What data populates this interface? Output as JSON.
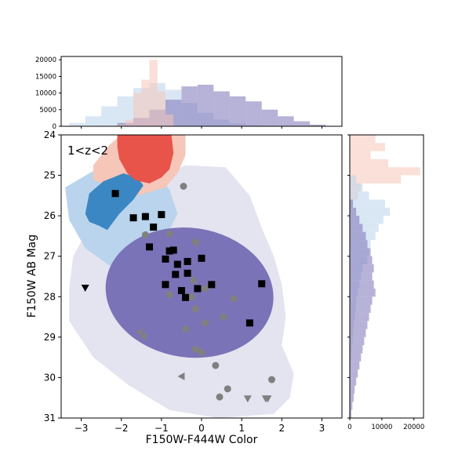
{
  "chart_data": {
    "type": "scatter",
    "panel_label": "1<z<2",
    "xlabel": "F150W-F444W Color",
    "ylabel": "F150W AB Mag",
    "xlim": [
      -3.5,
      3.5
    ],
    "ylim": [
      31,
      24
    ],
    "xticks": [
      -3,
      -2,
      -1,
      0,
      1,
      2,
      3
    ],
    "yticks": [
      24,
      25,
      26,
      27,
      28,
      29,
      30,
      31
    ],
    "top_hist_yticks": [
      0,
      5000,
      10000,
      15000,
      20000
    ],
    "top_hist_ylim": [
      0,
      21000
    ],
    "right_hist_xticks": [
      0,
      10000,
      20000
    ],
    "right_hist_xlim": [
      0,
      23000
    ],
    "colors": {
      "red": "#e8534a",
      "pink": "#f6c6b8",
      "blue": "#3b87c3",
      "lightblue": "#b9d4ec",
      "purple": "#7b73b7",
      "lavender": "#e4e3f0",
      "grey": "#808080",
      "black": "#000000"
    },
    "black_squares": [
      {
        "x": -2.15,
        "y": 25.45
      },
      {
        "x": -1.7,
        "y": 26.05
      },
      {
        "x": -1.4,
        "y": 26.02
      },
      {
        "x": -1.0,
        "y": 25.97
      },
      {
        "x": -1.2,
        "y": 26.28
      },
      {
        "x": -1.3,
        "y": 26.77
      },
      {
        "x": -0.8,
        "y": 26.87
      },
      {
        "x": -0.7,
        "y": 26.85
      },
      {
        "x": -0.9,
        "y": 27.07
      },
      {
        "x": -0.6,
        "y": 27.2
      },
      {
        "x": -0.65,
        "y": 27.45
      },
      {
        "x": -0.35,
        "y": 27.13
      },
      {
        "x": 0.0,
        "y": 27.05
      },
      {
        "x": -0.35,
        "y": 27.42
      },
      {
        "x": -0.9,
        "y": 27.7
      },
      {
        "x": -0.5,
        "y": 27.85
      },
      {
        "x": -0.4,
        "y": 28.02
      },
      {
        "x": -0.1,
        "y": 27.8
      },
      {
        "x": 0.25,
        "y": 27.7
      },
      {
        "x": 1.5,
        "y": 27.68
      },
      {
        "x": 1.2,
        "y": 28.65
      }
    ],
    "grey_circles": [
      {
        "x": -0.45,
        "y": 25.27
      },
      {
        "x": -1.4,
        "y": 26.47
      },
      {
        "x": -0.8,
        "y": 26.45
      },
      {
        "x": -0.15,
        "y": 26.65
      },
      {
        "x": -0.2,
        "y": 27.6
      },
      {
        "x": 0.1,
        "y": 27.8
      },
      {
        "x": -0.8,
        "y": 27.95
      },
      {
        "x": -0.25,
        "y": 28.0
      },
      {
        "x": -0.15,
        "y": 28.3
      },
      {
        "x": 0.8,
        "y": 28.05
      },
      {
        "x": -0.4,
        "y": 28.8
      },
      {
        "x": 0.55,
        "y": 28.5
      },
      {
        "x": 0.1,
        "y": 28.65
      },
      {
        "x": -0.15,
        "y": 29.3
      },
      {
        "x": 0.0,
        "y": 29.37
      },
      {
        "x": 0.35,
        "y": 29.7
      },
      {
        "x": 1.75,
        "y": 30.05
      },
      {
        "x": 0.65,
        "y": 30.28
      },
      {
        "x": 0.45,
        "y": 30.48
      }
    ],
    "upper_limit_triangles": [
      {
        "x": -2.9,
        "y": 27.78,
        "color": "black"
      },
      {
        "x": 1.15,
        "y": 30.52,
        "color": "grey"
      },
      {
        "x": 1.6,
        "y": 30.52,
        "color": "grey"
      },
      {
        "x": 1.65,
        "y": 30.52,
        "color": "grey"
      }
    ],
    "left_triangles": [
      {
        "x": -1.55,
        "y": 28.88
      },
      {
        "x": -1.45,
        "y": 28.98
      },
      {
        "x": -0.5,
        "y": 29.97
      }
    ],
    "contours": [
      {
        "name": "",
        "color": "lavender",
        "polygon": [
          [
            -3.2,
            27.0
          ],
          [
            -2.7,
            26.1
          ],
          [
            -1.6,
            25.3
          ],
          [
            -0.4,
            24.75
          ],
          [
            0.6,
            24.8
          ],
          [
            1.2,
            25.5
          ],
          [
            1.5,
            26.3
          ],
          [
            1.8,
            27.0
          ],
          [
            2.0,
            27.7
          ],
          [
            2.1,
            28.5
          ],
          [
            2.0,
            29.2
          ],
          [
            2.3,
            29.9
          ],
          [
            2.2,
            30.5
          ],
          [
            1.8,
            30.9
          ],
          [
            0.4,
            31.0
          ],
          [
            -0.8,
            30.8
          ],
          [
            -1.8,
            30.2
          ],
          [
            -2.7,
            29.5
          ],
          [
            -3.3,
            28.6
          ],
          [
            -3.3,
            27.8
          ]
        ]
      },
      {
        "name": "",
        "color": "lightblue",
        "polygon": [
          [
            -3.4,
            25.3
          ],
          [
            -2.8,
            24.95
          ],
          [
            -2.0,
            24.5
          ],
          [
            -1.3,
            24.8
          ],
          [
            -0.8,
            25.35
          ],
          [
            -0.6,
            25.95
          ],
          [
            -0.9,
            26.55
          ],
          [
            -1.5,
            27.1
          ],
          [
            -2.2,
            27.3
          ],
          [
            -2.9,
            26.8
          ],
          [
            -3.3,
            26.1
          ]
        ]
      },
      {
        "name": "",
        "color": "pink",
        "polygon": [
          [
            -2.7,
            24.75
          ],
          [
            -2.3,
            24.25
          ],
          [
            -2.0,
            24.0
          ],
          [
            -0.4,
            24.0
          ],
          [
            -0.4,
            24.5
          ],
          [
            -0.6,
            24.95
          ],
          [
            -0.9,
            25.3
          ],
          [
            -1.6,
            25.5
          ],
          [
            -2.3,
            25.3
          ],
          [
            -2.7,
            25.1
          ]
        ]
      },
      {
        "name": "",
        "color": "purple",
        "ellipse": {
          "cx": -0.3,
          "cy": 27.9,
          "rx": 2.1,
          "ry": 1.6,
          "angle": 8
        }
      },
      {
        "name": "",
        "color": "blue",
        "polygon": [
          [
            -2.9,
            25.95
          ],
          [
            -2.8,
            25.45
          ],
          [
            -2.45,
            25.15
          ],
          [
            -1.95,
            24.95
          ],
          [
            -1.6,
            25.05
          ],
          [
            -1.45,
            25.25
          ],
          [
            -1.7,
            25.6
          ],
          [
            -2.05,
            25.95
          ],
          [
            -2.35,
            26.35
          ],
          [
            -2.55,
            26.25
          ],
          [
            -2.8,
            26.15
          ]
        ]
      },
      {
        "name": "",
        "color": "red",
        "polygon": [
          [
            -2.1,
            24.0
          ],
          [
            -0.75,
            24.0
          ],
          [
            -0.7,
            24.45
          ],
          [
            -0.8,
            24.85
          ],
          [
            -1.0,
            25.05
          ],
          [
            -1.3,
            25.2
          ],
          [
            -1.65,
            25.12
          ],
          [
            -1.85,
            24.95
          ],
          [
            -2.05,
            24.6
          ],
          [
            -2.1,
            24.3
          ]
        ]
      }
    ],
    "top_histograms": [
      {
        "name": "",
        "color": "lightblue",
        "bins": [
          -3.3,
          -2.9,
          -2.5,
          -2.1,
          -1.7,
          -1.3,
          -0.9,
          -0.5,
          -0.1,
          0.3,
          0.7,
          1.1,
          1.5,
          1.9
        ],
        "counts": [
          1000,
          3000,
          6000,
          9000,
          11500,
          13000,
          11000,
          7000,
          4000,
          2000,
          900,
          300,
          100
        ]
      },
      {
        "name": "",
        "color": "purple",
        "bins": [
          -2.1,
          -1.7,
          -1.3,
          -0.9,
          -0.5,
          -0.1,
          0.3,
          0.7,
          1.1,
          1.5,
          1.9,
          2.3,
          2.7,
          3.1
        ],
        "counts": [
          1000,
          2500,
          5000,
          8000,
          12000,
          12500,
          10500,
          9000,
          7500,
          5000,
          3000,
          1500,
          500
        ]
      },
      {
        "name": "",
        "color": "pink",
        "bins": [
          -2.1,
          -1.9,
          -1.7,
          -1.5,
          -1.3,
          -1.1,
          -0.9,
          -0.7
        ],
        "counts": [
          500,
          2000,
          10000,
          14000,
          20000,
          10500,
          3500
        ]
      }
    ],
    "right_histograms": [
      {
        "name": "",
        "color": "pink",
        "bins": [
          24.0,
          24.2,
          24.4,
          24.6,
          24.8,
          25.0,
          25.2,
          25.4,
          25.6,
          25.8
        ],
        "counts": [
          8000,
          11000,
          6500,
          12000,
          22000,
          16000,
          3500,
          2500,
          800
        ]
      },
      {
        "name": "",
        "color": "lightblue",
        "bins": [
          25.0,
          25.2,
          25.4,
          25.6,
          25.8,
          26.0,
          26.2,
          26.4,
          26.6,
          26.8,
          27.0,
          27.2,
          27.4,
          27.6,
          27.8,
          28.0,
          28.2,
          28.4,
          28.6,
          28.8,
          29.0,
          29.2,
          29.4,
          29.6
        ],
        "counts": [
          2000,
          4000,
          6000,
          11000,
          12500,
          10500,
          9000,
          8000,
          6500,
          6000,
          5500,
          4000,
          3500,
          3000,
          2500,
          2000,
          1800,
          1500,
          1200,
          1000,
          800,
          600,
          400
        ]
      },
      {
        "name": "",
        "color": "purple",
        "bins": [
          25.6,
          25.8,
          26.0,
          26.2,
          26.4,
          26.6,
          26.8,
          27.0,
          27.2,
          27.4,
          27.6,
          27.8,
          28.0,
          28.2,
          28.4,
          28.6,
          28.8,
          29.0,
          29.2,
          29.4,
          29.6,
          29.8,
          30.0,
          30.2,
          30.4,
          30.6,
          30.8,
          31.0
        ],
        "counts": [
          1000,
          2000,
          3000,
          4000,
          5000,
          5500,
          6500,
          7000,
          7500,
          7000,
          7500,
          8000,
          7000,
          6500,
          6000,
          5500,
          5000,
          4500,
          4000,
          3500,
          3000,
          2500,
          2000,
          1500,
          1200,
          800,
          500
        ]
      }
    ]
  }
}
